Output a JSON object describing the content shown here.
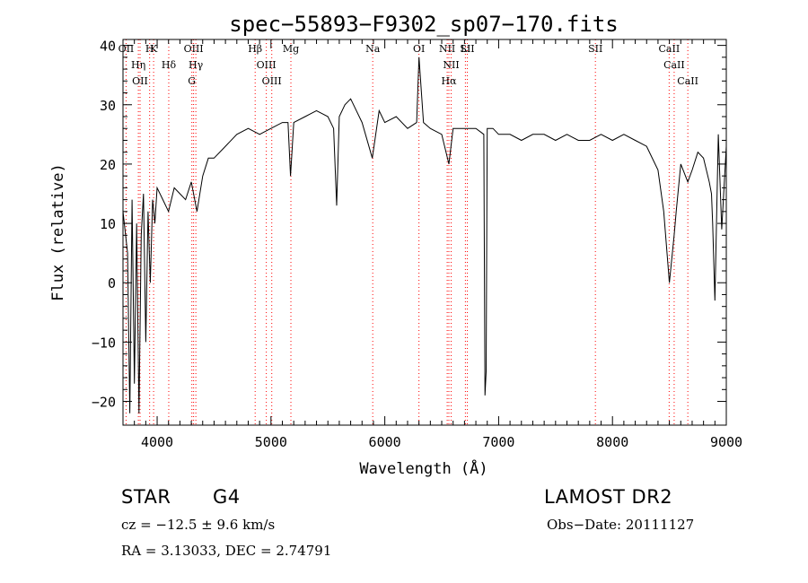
{
  "chart_data": {
    "type": "line",
    "title": "spec−55893−F9302_sp07−170.fits",
    "xlabel": "Wavelength (Å)",
    "ylabel": "Flux (relative)",
    "xlim": [
      3700,
      9000
    ],
    "ylim": [
      -24,
      41
    ],
    "xticks": [
      4000,
      5000,
      6000,
      7000,
      8000,
      9000
    ],
    "yticks": [
      -20,
      -10,
      0,
      10,
      20,
      30,
      40
    ],
    "grid": false,
    "line_color": "#000000",
    "marker_color": "#ff0000",
    "series": [
      {
        "x": [
          3700,
          3740,
          3760,
          3780,
          3800,
          3820,
          3840,
          3860,
          3880,
          3900,
          3920,
          3940,
          3960,
          3980,
          4000,
          4050,
          4100,
          4150,
          4200,
          4250,
          4300,
          4350,
          4400,
          4450,
          4500,
          4600,
          4700,
          4800,
          4900,
          5000,
          5100,
          5150,
          5172,
          5200,
          5300,
          5400,
          5500,
          5550,
          5577,
          5600,
          5650,
          5700,
          5800,
          5890,
          5950,
          6000,
          6100,
          6200,
          6280,
          6300,
          6340,
          6400,
          6500,
          6563,
          6600,
          6700,
          6800,
          6870,
          6880,
          6890,
          6900,
          6950,
          7000,
          7100,
          7200,
          7300,
          7400,
          7500,
          7600,
          7700,
          7800,
          7900,
          8000,
          8100,
          8200,
          8300,
          8400,
          8450,
          8500,
          8542,
          8560,
          8600,
          8662,
          8700,
          8750,
          8800,
          8850,
          8870,
          8880,
          8900,
          8930,
          8960,
          9000
        ],
        "y": [
          12,
          5,
          -22,
          14,
          -17,
          10,
          -22,
          8,
          15,
          -10,
          12,
          0,
          14,
          10,
          16,
          14,
          12,
          16,
          15,
          14,
          17,
          12,
          18,
          21,
          21,
          23,
          25,
          26,
          25,
          26,
          27,
          27,
          18,
          27,
          28,
          29,
          28,
          26,
          13,
          28,
          30,
          31,
          27,
          21,
          29,
          27,
          28,
          26,
          27,
          38,
          27,
          26,
          25,
          20,
          26,
          26,
          26,
          25,
          -19,
          -15,
          26,
          26,
          25,
          25,
          24,
          25,
          25,
          24,
          25,
          24,
          24,
          25,
          24,
          25,
          24,
          23,
          19,
          12,
          0,
          8,
          12,
          20,
          17,
          19,
          22,
          21,
          17,
          15,
          10,
          -3,
          25,
          9,
          23
        ]
      }
    ],
    "lines": [
      {
        "label": "OII",
        "x": 3727
      },
      {
        "label": "Hη",
        "x": 3835
      },
      {
        "label": "OII",
        "x": 3850
      },
      {
        "label": "H",
        "x": 3934
      },
      {
        "label": "K",
        "x": 3969
      },
      {
        "label": "Hδ",
        "x": 4102
      },
      {
        "label": "OIII",
        "x": 4320
      },
      {
        "label": "Hγ",
        "x": 4340
      },
      {
        "label": "G",
        "x": 4305
      },
      {
        "label": "Hβ",
        "x": 4861
      },
      {
        "label": "OIII",
        "x": 4959
      },
      {
        "label": "OIII",
        "x": 5007
      },
      {
        "label": "Mg",
        "x": 5175
      },
      {
        "label": "Na",
        "x": 5894
      },
      {
        "label": "OI",
        "x": 6300
      },
      {
        "label": "NII",
        "x": 6548
      },
      {
        "label": "NII",
        "x": 6583
      },
      {
        "label": "Hα",
        "x": 6563
      },
      {
        "label": "Li",
        "x": 6708
      },
      {
        "label": "SII",
        "x": 6725
      },
      {
        "label": "SII",
        "x": 7850
      },
      {
        "label": "CaII",
        "x": 8498
      },
      {
        "label": "CaII",
        "x": 8542
      },
      {
        "label": "CaII",
        "x": 8662
      }
    ]
  },
  "info": {
    "object_class": "STAR",
    "subclass": "G4",
    "survey": "LAMOST DR2",
    "cz": "cz = −12.5 ± 9.6 km/s",
    "obs_date": "Obs−Date: 20111127",
    "coords": "RA =    3.13033, DEC =    2.74791"
  }
}
